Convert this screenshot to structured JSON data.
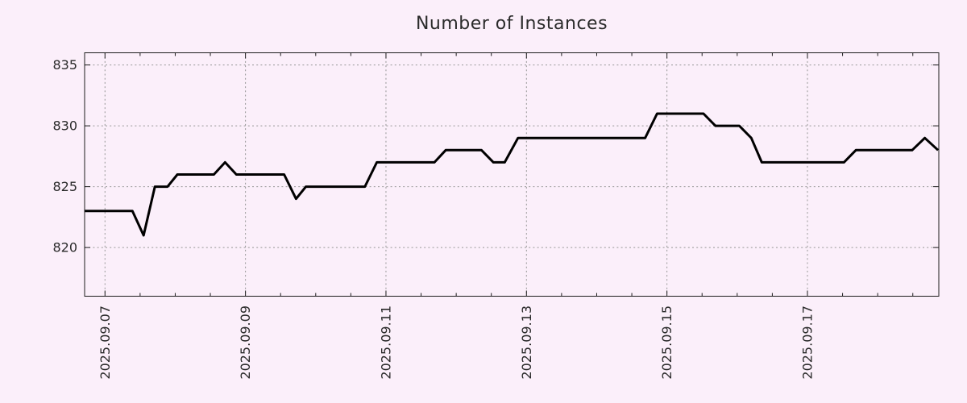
{
  "chart_data": {
    "type": "line",
    "title": "Number of Instances",
    "x_axis": {
      "tick_labels": [
        "2025.09.07",
        "2025.09.09",
        "2025.09.11",
        "2025.09.13",
        "2025.09.15",
        "2025.09.17"
      ],
      "tick_positions_days": [
        0,
        2,
        4,
        6,
        8,
        10
      ],
      "minor_tick_interval_days": 0.5,
      "range_days": [
        -0.29,
        11.87
      ],
      "label_rotation_deg": -90
    },
    "y_axis": {
      "tick_labels": [
        "820",
        "825",
        "830",
        "835"
      ],
      "tick_values": [
        820,
        825,
        830,
        835
      ],
      "range": [
        816,
        836
      ]
    },
    "grid": {
      "show": true,
      "line_style": "dotted"
    },
    "legend_visible": false,
    "series": [
      {
        "name": "instances",
        "points_days_value": [
          [
            -0.29,
            823
          ],
          [
            0.39,
            823
          ],
          [
            0.55,
            821
          ],
          [
            0.71,
            825
          ],
          [
            0.89,
            825
          ],
          [
            1.03,
            826
          ],
          [
            1.55,
            826
          ],
          [
            1.71,
            827
          ],
          [
            1.87,
            826
          ],
          [
            2.55,
            826
          ],
          [
            2.72,
            824
          ],
          [
            2.86,
            825
          ],
          [
            3.7,
            825
          ],
          [
            3.87,
            827
          ],
          [
            4.69,
            827
          ],
          [
            4.85,
            828
          ],
          [
            5.36,
            828
          ],
          [
            5.53,
            827
          ],
          [
            5.69,
            827
          ],
          [
            5.88,
            829
          ],
          [
            7.69,
            829
          ],
          [
            7.86,
            831
          ],
          [
            8.52,
            831
          ],
          [
            8.69,
            830
          ],
          [
            9.03,
            830
          ],
          [
            9.2,
            829
          ],
          [
            9.35,
            827
          ],
          [
            10.52,
            827
          ],
          [
            10.69,
            828
          ],
          [
            11.49,
            828
          ],
          [
            11.67,
            829
          ],
          [
            11.86,
            828
          ]
        ]
      }
    ],
    "colors": {
      "background": "#fbeffa",
      "border": "#1c1c1c",
      "text": "#2b2b2b",
      "grid": "#969696",
      "line": "#000000"
    }
  }
}
